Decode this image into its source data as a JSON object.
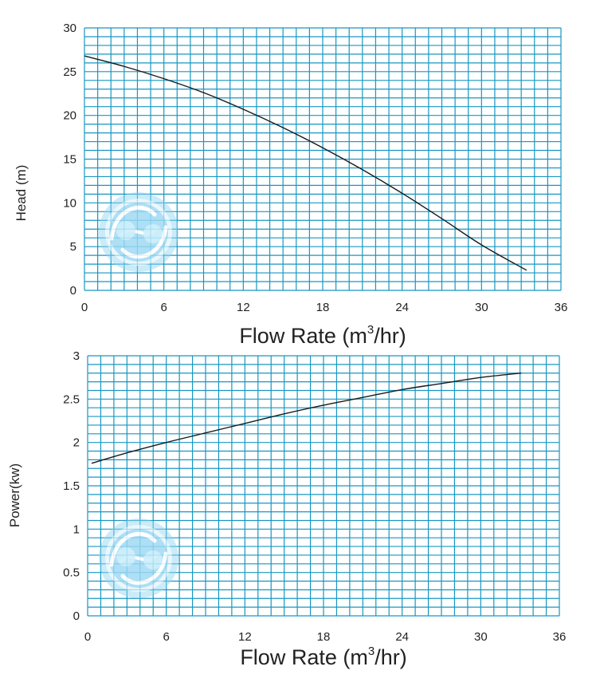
{
  "colors": {
    "grid": "#1797c2",
    "curve": "#1a1a1a",
    "watermark": "#8fd3f1",
    "text": "#222222"
  },
  "watermark_icon": "water-swirl-logo-icon",
  "chart_data": [
    {
      "type": "line",
      "name": "head-chart",
      "title": "",
      "xlabel": "Flow Rate (m",
      "xlabel_sup": "3",
      "xlabel_tail": "/hr)",
      "ylabel": "Head (m)",
      "xlim": [
        0,
        36
      ],
      "ylim": [
        0,
        30
      ],
      "x_minor_step": 1,
      "y_minor_step": 1,
      "x_ticks": [
        0,
        6,
        12,
        18,
        24,
        30,
        36
      ],
      "x_tick_labels": [
        "0",
        "6",
        "12",
        "18",
        "24",
        "30",
        "36"
      ],
      "y_ticks": [
        0,
        5,
        10,
        15,
        20,
        25,
        30
      ],
      "y_tick_labels": [
        "0",
        "5",
        "10",
        "15",
        "20",
        "25",
        "30"
      ],
      "grid": true,
      "series": [
        {
          "name": "Head",
          "x": [
            0,
            3,
            6,
            9,
            12,
            15,
            18,
            21,
            24,
            27,
            30,
            33.4
          ],
          "y": [
            26.8,
            25.6,
            24.2,
            22.6,
            20.7,
            18.6,
            16.3,
            13.8,
            11.1,
            8.2,
            5.2,
            2.3
          ]
        }
      ]
    },
    {
      "type": "line",
      "name": "power-chart",
      "title": "",
      "xlabel": "Flow Rate (m",
      "xlabel_sup": "3",
      "xlabel_tail": "/hr)",
      "ylabel": "Power(kw)",
      "xlim": [
        0,
        36
      ],
      "ylim": [
        0,
        3
      ],
      "x_minor_step": 1,
      "y_minor_step": 0.1,
      "x_ticks": [
        0,
        6,
        12,
        18,
        24,
        30,
        36
      ],
      "x_tick_labels": [
        "0",
        "6",
        "12",
        "18",
        "24",
        "30",
        "36"
      ],
      "y_ticks": [
        0,
        0.5,
        1,
        1.5,
        2,
        2.5,
        3
      ],
      "y_tick_labels": [
        "0",
        "0.5",
        "1",
        "1.5",
        "2",
        "2.5",
        "3"
      ],
      "grid": true,
      "series": [
        {
          "name": "Power",
          "x": [
            0.3,
            3,
            6,
            9,
            12,
            15,
            18,
            21,
            24,
            27,
            30,
            33.1
          ],
          "y": [
            1.76,
            1.88,
            2.0,
            2.11,
            2.22,
            2.33,
            2.43,
            2.52,
            2.61,
            2.68,
            2.75,
            2.8
          ]
        }
      ]
    }
  ]
}
